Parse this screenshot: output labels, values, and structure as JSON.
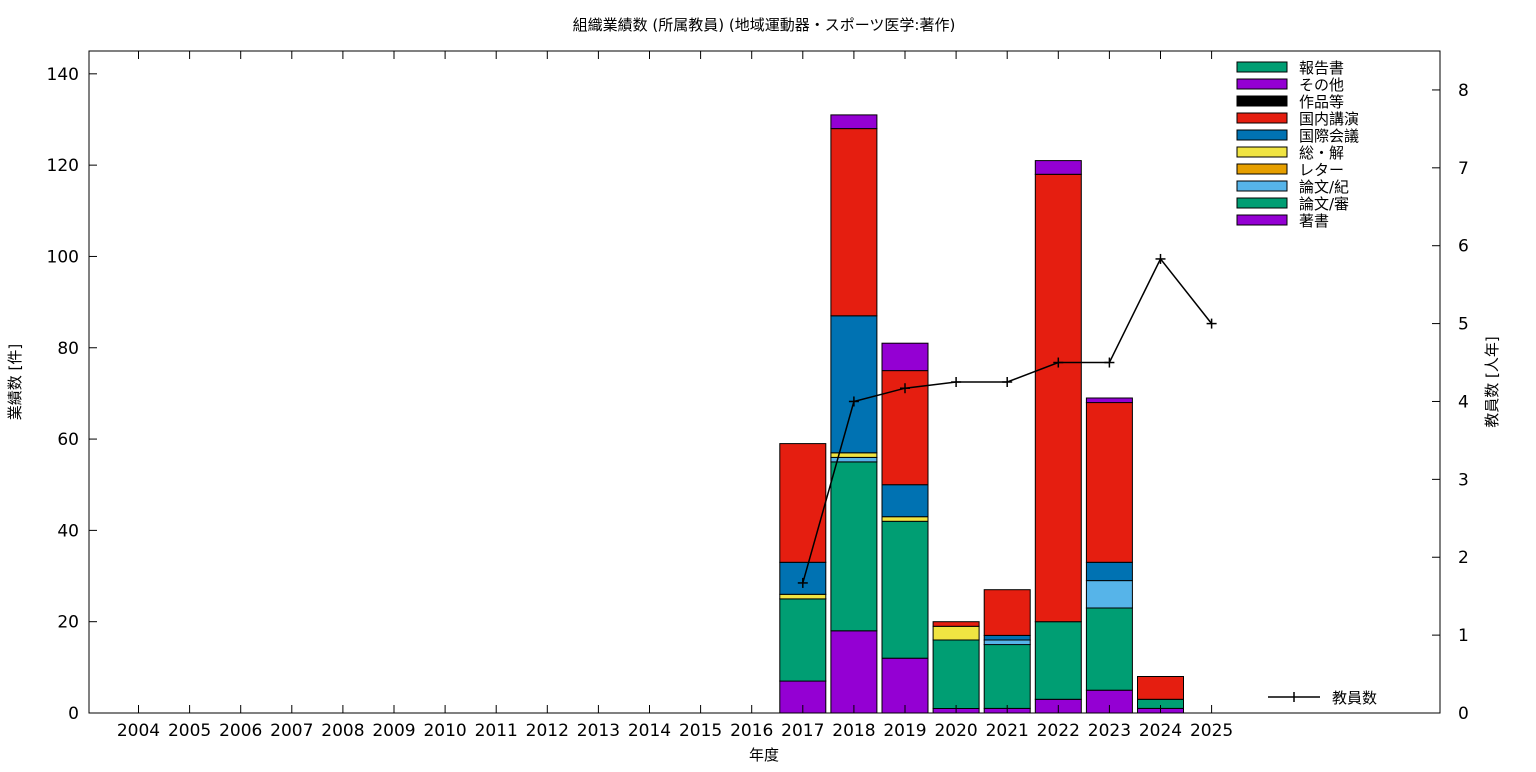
{
  "chart_data": {
    "type": "bar",
    "stacked": true,
    "title": "組織業績数 (所属教員) (地域運動器・スポーツ医学:著作)",
    "xlabel": "年度",
    "ylabel": "業績数 [件]",
    "y2label": "教員数 [人年]",
    "categories": [
      "2004",
      "2005",
      "2006",
      "2007",
      "2008",
      "2009",
      "2010",
      "2011",
      "2012",
      "2013",
      "2014",
      "2015",
      "2016",
      "2017",
      "2018",
      "2019",
      "2020",
      "2021",
      "2022",
      "2023",
      "2024",
      "2025"
    ],
    "ylim": [
      0,
      145
    ],
    "yticks": [
      0,
      20,
      40,
      60,
      80,
      100,
      120,
      140
    ],
    "y2lim": [
      0,
      8.5
    ],
    "y2ticks": [
      0,
      1,
      2,
      3,
      4,
      5,
      6,
      7,
      8
    ],
    "legend_position": "top-right",
    "grid": false,
    "series": [
      {
        "name": "著書",
        "color": "#9400d3",
        "values": [
          0,
          0,
          0,
          0,
          0,
          0,
          0,
          0,
          0,
          0,
          0,
          0,
          0,
          7,
          18,
          12,
          1,
          1,
          3,
          5,
          1,
          0
        ]
      },
      {
        "name": "論文/審",
        "color": "#009e73",
        "values": [
          0,
          0,
          0,
          0,
          0,
          0,
          0,
          0,
          0,
          0,
          0,
          0,
          0,
          18,
          37,
          30,
          15,
          14,
          17,
          18,
          2,
          0
        ]
      },
      {
        "name": "論文/紀",
        "color": "#56b4e9",
        "values": [
          0,
          0,
          0,
          0,
          0,
          0,
          0,
          0,
          0,
          0,
          0,
          0,
          0,
          0,
          1,
          0,
          0,
          1,
          0,
          6,
          0,
          0
        ]
      },
      {
        "name": "レター",
        "color": "#e69f00",
        "values": [
          0,
          0,
          0,
          0,
          0,
          0,
          0,
          0,
          0,
          0,
          0,
          0,
          0,
          0,
          0,
          0,
          0,
          0,
          0,
          0,
          0,
          0
        ]
      },
      {
        "name": "総・解",
        "color": "#f0e442",
        "values": [
          0,
          0,
          0,
          0,
          0,
          0,
          0,
          0,
          0,
          0,
          0,
          0,
          0,
          1,
          1,
          1,
          3,
          0,
          0,
          0,
          0,
          0
        ]
      },
      {
        "name": "国際会議",
        "color": "#0072b2",
        "values": [
          0,
          0,
          0,
          0,
          0,
          0,
          0,
          0,
          0,
          0,
          0,
          0,
          0,
          7,
          30,
          7,
          0,
          1,
          0,
          4,
          0,
          0
        ]
      },
      {
        "name": "国内講演",
        "color": "#e51e10",
        "values": [
          0,
          0,
          0,
          0,
          0,
          0,
          0,
          0,
          0,
          0,
          0,
          0,
          0,
          26,
          41,
          25,
          1,
          10,
          98,
          35,
          5,
          0
        ]
      },
      {
        "name": "作品等",
        "color": "#000000",
        "values": [
          0,
          0,
          0,
          0,
          0,
          0,
          0,
          0,
          0,
          0,
          0,
          0,
          0,
          0,
          0,
          0,
          0,
          0,
          0,
          0,
          0,
          0
        ]
      },
      {
        "name": "その他",
        "color": "#9400d3",
        "values": [
          0,
          0,
          0,
          0,
          0,
          0,
          0,
          0,
          0,
          0,
          0,
          0,
          0,
          0,
          3,
          6,
          0,
          0,
          3,
          1,
          0,
          0
        ]
      },
      {
        "name": "報告書",
        "color": "#009e73",
        "values": [
          0,
          0,
          0,
          0,
          0,
          0,
          0,
          0,
          0,
          0,
          0,
          0,
          0,
          0,
          0,
          0,
          0,
          0,
          0,
          0,
          0,
          0
        ]
      }
    ],
    "line_series": {
      "name": "教員数",
      "axis": "y2",
      "color": "#000000",
      "x": [
        "2017",
        "2018",
        "2019",
        "2020",
        "2021",
        "2022",
        "2023",
        "2024",
        "2025"
      ],
      "values": [
        1.67,
        4.0,
        4.17,
        4.25,
        4.25,
        4.5,
        4.5,
        5.83,
        5.0
      ]
    }
  }
}
